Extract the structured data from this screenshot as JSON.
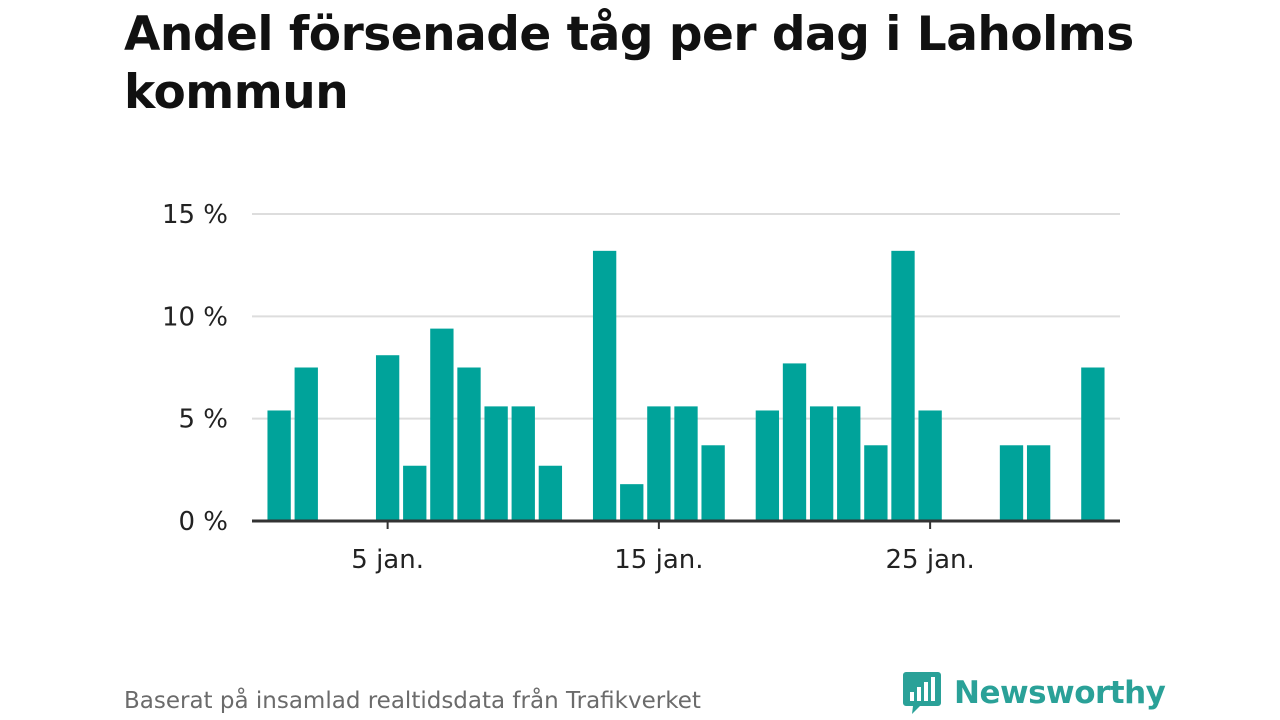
{
  "title": "Andel försenade tåg per dag i Laholms kommun",
  "footer": {
    "source": "Baserat på insamlad realtidsdata från Trafikverket",
    "brand": "Newsworthy"
  },
  "colors": {
    "bar": "#00a39a",
    "grid": "#dddddd",
    "axis": "#333333",
    "brand": "#2aa198"
  },
  "chart_data": {
    "type": "bar",
    "x": [
      1,
      2,
      3,
      4,
      5,
      6,
      7,
      8,
      9,
      10,
      11,
      12,
      13,
      14,
      15,
      16,
      17,
      18,
      19,
      20,
      21,
      22,
      23,
      24,
      25,
      26,
      27,
      28,
      29,
      30,
      31
    ],
    "values": [
      5.4,
      7.5,
      0,
      0,
      8.1,
      2.7,
      9.4,
      7.5,
      5.6,
      5.6,
      2.7,
      0,
      13.2,
      1.8,
      5.6,
      5.6,
      3.7,
      0,
      5.4,
      7.7,
      5.6,
      5.6,
      3.7,
      13.2,
      5.4,
      0,
      0,
      3.7,
      3.7,
      0,
      7.5
    ],
    "ylim": [
      0,
      15
    ],
    "yticks": [
      0,
      5,
      10,
      15
    ],
    "ytick_labels": [
      "0 %",
      "5 %",
      "10 %",
      "15 %"
    ],
    "xticks": [
      5,
      15,
      25
    ],
    "xtick_labels": [
      "5 jan.",
      "15 jan.",
      "25 jan."
    ],
    "grid": true
  }
}
